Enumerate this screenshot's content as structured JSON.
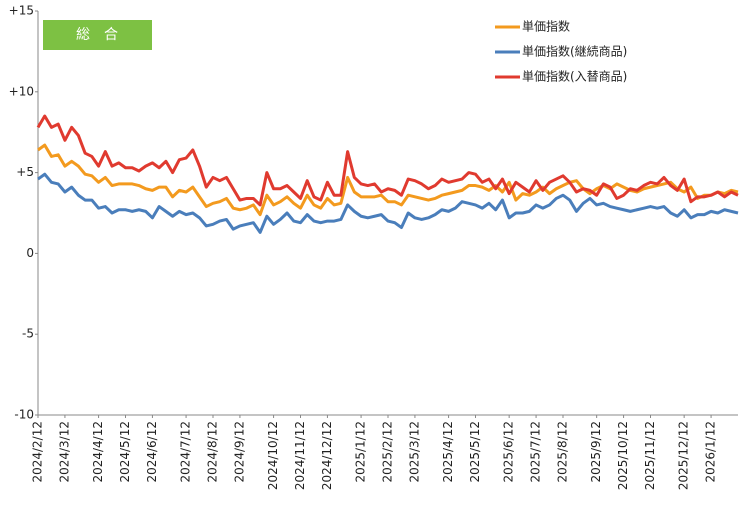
{
  "chart_data": {
    "type": "line",
    "annotation": "総　合",
    "categories": [
      "2024/2/12",
      null,
      null,
      null,
      "2024/3/12",
      null,
      null,
      null,
      null,
      "2024/4/12",
      null,
      null,
      null,
      "2024/5/12",
      null,
      null,
      null,
      "2024/6/12",
      null,
      null,
      null,
      null,
      "2024/7/12",
      null,
      null,
      null,
      "2024/8/12",
      null,
      null,
      null,
      "2024/9/12",
      null,
      null,
      null,
      null,
      "2024/10/12",
      null,
      null,
      null,
      "2024/11/12",
      null,
      null,
      null,
      "2024/12/12",
      null,
      null,
      null,
      null,
      "2025/1/12",
      null,
      null,
      null,
      "2025/2/12",
      null,
      null,
      null,
      "2025/3/12",
      null,
      null,
      null,
      null,
      "2025/4/12",
      null,
      null,
      null,
      "2025/5/12",
      null,
      null,
      null,
      null,
      "2025/6/12",
      null,
      null,
      null,
      "2025/7/12",
      null,
      null,
      null,
      "2025/8/12",
      null,
      null,
      null,
      null,
      "2025/9/12",
      null,
      null,
      null,
      "2025/10/12",
      null,
      null,
      null,
      "2025/11/12",
      null,
      null,
      null,
      null,
      "2025/12/12",
      null,
      null,
      null,
      "2026/1/12",
      null,
      null,
      null,
      null
    ],
    "series": [
      {
        "name": "単価指数",
        "color": "#f39a1e",
        "values": [
          6.4,
          6.7,
          6.0,
          6.1,
          5.4,
          5.7,
          5.4,
          4.9,
          4.8,
          4.4,
          4.7,
          4.2,
          4.3,
          4.3,
          4.3,
          4.2,
          4.0,
          3.9,
          4.1,
          4.1,
          3.5,
          3.9,
          3.8,
          4.1,
          3.5,
          2.9,
          3.1,
          3.2,
          3.4,
          2.8,
          2.7,
          2.8,
          3.0,
          2.4,
          3.6,
          3.0,
          3.2,
          3.5,
          3.1,
          2.8,
          3.6,
          3.0,
          2.8,
          3.4,
          3.0,
          3.1,
          4.7,
          3.8,
          3.5,
          3.5,
          3.5,
          3.6,
          3.2,
          3.2,
          3.0,
          3.6,
          3.5,
          3.4,
          3.3,
          3.4,
          3.6,
          3.7,
          3.8,
          3.9,
          4.2,
          4.2,
          4.1,
          3.9,
          4.2,
          3.8,
          4.4,
          3.3,
          3.7,
          3.6,
          3.8,
          4.1,
          3.7,
          4.0,
          4.2,
          4.4,
          4.5,
          4.0,
          3.7,
          4.0,
          4.2,
          4.0,
          4.3,
          4.1,
          3.9,
          3.8,
          4.0,
          4.1,
          4.2,
          4.3,
          4.4,
          4.0,
          3.8,
          4.1,
          3.4,
          3.6,
          3.6,
          3.8,
          3.7,
          3.9,
          3.8
        ]
      },
      {
        "name": "単価指数(継続商品)",
        "color": "#4a7ebb",
        "values": [
          4.6,
          4.9,
          4.4,
          4.3,
          3.8,
          4.1,
          3.6,
          3.3,
          3.3,
          2.8,
          2.9,
          2.5,
          2.7,
          2.7,
          2.6,
          2.7,
          2.6,
          2.2,
          2.9,
          2.6,
          2.3,
          2.6,
          2.4,
          2.5,
          2.2,
          1.7,
          1.8,
          2.0,
          2.1,
          1.5,
          1.7,
          1.8,
          1.9,
          1.3,
          2.3,
          1.8,
          2.1,
          2.5,
          2.0,
          1.9,
          2.4,
          2.0,
          1.9,
          2.0,
          2.0,
          2.1,
          3.0,
          2.6,
          2.3,
          2.2,
          2.3,
          2.4,
          2.0,
          1.9,
          1.6,
          2.5,
          2.2,
          2.1,
          2.2,
          2.4,
          2.7,
          2.6,
          2.8,
          3.2,
          3.1,
          3.0,
          2.8,
          3.1,
          2.7,
          3.3,
          2.2,
          2.5,
          2.5,
          2.6,
          3.0,
          2.8,
          3.0,
          3.4,
          3.6,
          3.3,
          2.6,
          3.1,
          3.4,
          3.0,
          3.1,
          2.9,
          2.8,
          2.7,
          2.6,
          2.7,
          2.8,
          2.9,
          2.8,
          2.9,
          2.5,
          2.3,
          2.7,
          2.2,
          2.4,
          2.4,
          2.6,
          2.5,
          2.7,
          2.6,
          2.5
        ]
      },
      {
        "name": "単価指数(入替商品)",
        "color": "#e03a2f",
        "values": [
          7.8,
          8.5,
          7.8,
          8.0,
          7.0,
          7.8,
          7.3,
          6.2,
          6.0,
          5.4,
          6.3,
          5.4,
          5.6,
          5.3,
          5.3,
          5.1,
          5.4,
          5.6,
          5.3,
          5.7,
          5.0,
          5.8,
          5.9,
          6.4,
          5.4,
          4.1,
          4.7,
          4.5,
          4.7,
          4.0,
          3.3,
          3.4,
          3.4,
          3.0,
          5.0,
          4.0,
          4.0,
          4.2,
          3.8,
          3.4,
          4.5,
          3.5,
          3.3,
          4.4,
          3.6,
          3.6,
          6.3,
          4.7,
          4.3,
          4.2,
          4.3,
          3.8,
          4.0,
          3.9,
          3.6,
          4.6,
          4.5,
          4.3,
          4.0,
          4.2,
          4.6,
          4.4,
          4.5,
          4.6,
          5.0,
          4.9,
          4.4,
          4.6,
          4.0,
          4.6,
          3.7,
          4.4,
          4.1,
          3.8,
          4.5,
          3.9,
          4.4,
          4.6,
          4.8,
          4.4,
          3.8,
          4.0,
          3.9,
          3.6,
          4.3,
          4.1,
          3.4,
          3.6,
          4.0,
          3.9,
          4.2,
          4.4,
          4.3,
          4.7,
          4.2,
          3.9,
          4.6,
          3.2,
          3.5,
          3.5,
          3.6,
          3.8,
          3.5,
          3.8,
          3.6
        ]
      }
    ],
    "ylim": [
      -10,
      15
    ],
    "yticks": [
      -10,
      -5,
      0,
      {
        "value": 5,
        "label": "+5"
      },
      {
        "value": 10,
        "label": "+10"
      },
      {
        "value": 15,
        "label": "+15"
      }
    ]
  }
}
